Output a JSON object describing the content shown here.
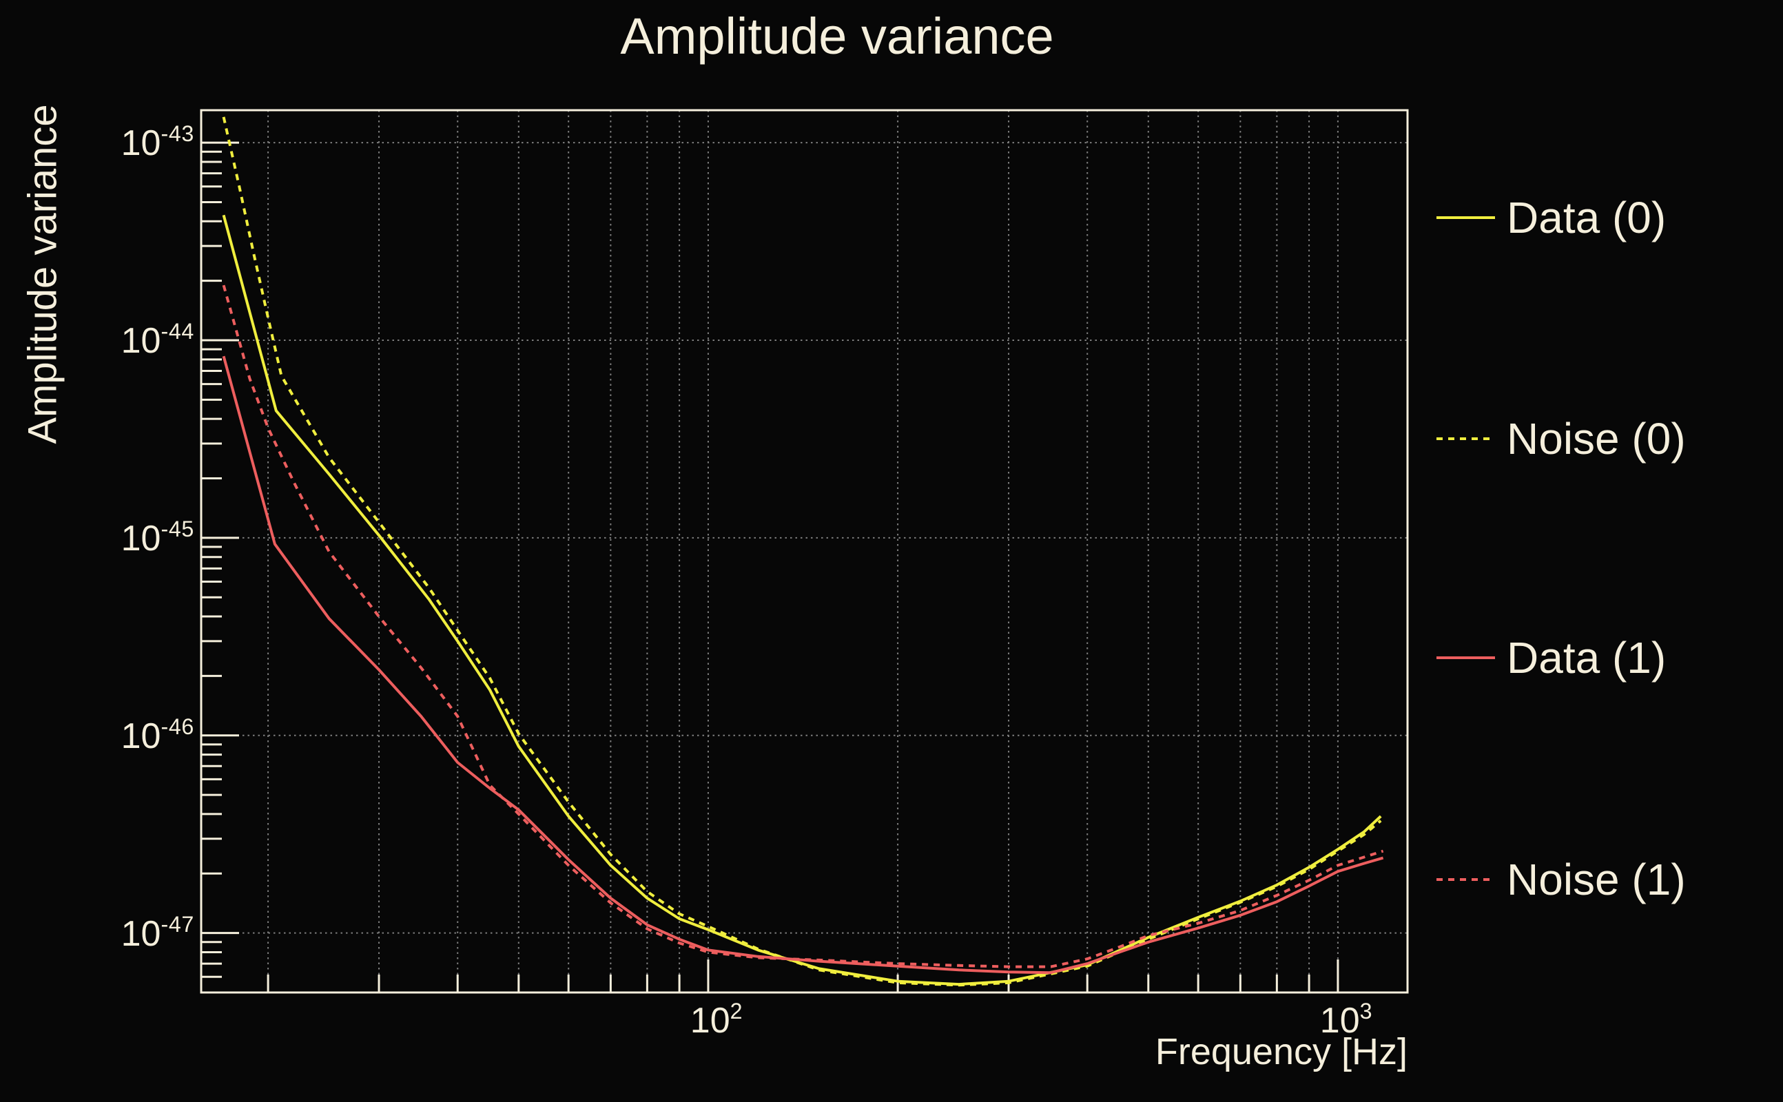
{
  "title": "Amplitude variance",
  "colors": {
    "background": "#070707",
    "foreground": "#f5efdc",
    "grid": "#7d7d7d",
    "yellow": "#f0ee3e",
    "red": "#ed5e5e"
  },
  "legend": [
    {
      "label": "Data (0)",
      "color": "#f0ee3e",
      "style": "solid"
    },
    {
      "label": "Noise (0)",
      "color": "#f0ee3e",
      "style": "dotted"
    },
    {
      "label": "Data (1)",
      "color": "#ed5e5e",
      "style": "solid"
    },
    {
      "label": "Noise (1)",
      "color": "#ed5e5e",
      "style": "dotted"
    }
  ],
  "chart_data": {
    "type": "line",
    "title": "Amplitude variance",
    "xlabel": "Frequency [Hz]",
    "ylabel": "Amplitude variance",
    "x_scale": "log",
    "y_scale": "log",
    "xlim": [
      15.66,
      1290
    ],
    "ylim": [
      5e-48,
      1.46e-43
    ],
    "grid": true,
    "x_grid_max": 1000,
    "legend_position": "right",
    "x_tick_labels": [
      {
        "value": 100,
        "base": "10",
        "exp": "2"
      },
      {
        "value": 1000,
        "base": "10",
        "exp": "3"
      }
    ],
    "y_tick_labels": [
      {
        "value": 1e-43,
        "base": "10",
        "exp": "-43"
      },
      {
        "value": 1e-44,
        "base": "10",
        "exp": "-44"
      },
      {
        "value": 1e-45,
        "base": "10",
        "exp": "-45"
      },
      {
        "value": 1e-46,
        "base": "10",
        "exp": "-46"
      },
      {
        "value": 1e-47,
        "base": "10",
        "exp": "-47"
      }
    ],
    "series": [
      {
        "name": "Data (0)",
        "color": "#f0ee3e",
        "style": "solid",
        "points": [
          [
            17,
            4.3e-44
          ],
          [
            20.6,
            4.4e-45
          ],
          [
            25,
            2.1e-45
          ],
          [
            30,
            1.03e-45
          ],
          [
            36,
            4.9e-46
          ],
          [
            40,
            3e-46
          ],
          [
            45,
            1.7e-46
          ],
          [
            50,
            8.8e-47
          ],
          [
            60,
            3.9e-47
          ],
          [
            70,
            2.2e-47
          ],
          [
            80,
            1.5e-47
          ],
          [
            90,
            1.18e-47
          ],
          [
            100,
            1.04e-47
          ],
          [
            120,
            8.2e-48
          ],
          [
            150,
            6.6e-48
          ],
          [
            200,
            5.7e-48
          ],
          [
            250,
            5.5e-48
          ],
          [
            300,
            5.7e-48
          ],
          [
            400,
            6.9e-48
          ],
          [
            500,
            9.5e-48
          ],
          [
            600,
            1.2e-47
          ],
          [
            700,
            1.45e-47
          ],
          [
            800,
            1.75e-47
          ],
          [
            900,
            2.15e-47
          ],
          [
            1000,
            2.65e-47
          ],
          [
            1100,
            3.25e-47
          ],
          [
            1170,
            3.9e-47
          ]
        ]
      },
      {
        "name": "Noise (0)",
        "color": "#f0ee3e",
        "style": "dotted",
        "points": [
          [
            17,
            1.35e-43
          ],
          [
            18,
            6e-44
          ],
          [
            19,
            2.7e-44
          ],
          [
            20,
            1.3e-44
          ],
          [
            21,
            6.6e-45
          ],
          [
            25,
            2.55e-45
          ],
          [
            30,
            1.2e-45
          ],
          [
            36,
            5.6e-46
          ],
          [
            40,
            3.4e-46
          ],
          [
            45,
            1.95e-46
          ],
          [
            50,
            1.02e-46
          ],
          [
            60,
            4.6e-47
          ],
          [
            70,
            2.5e-47
          ],
          [
            80,
            1.62e-47
          ],
          [
            90,
            1.25e-47
          ],
          [
            100,
            1.08e-47
          ],
          [
            120,
            8.3e-48
          ],
          [
            150,
            6.5e-48
          ],
          [
            200,
            5.6e-48
          ],
          [
            250,
            5.45e-48
          ],
          [
            300,
            5.6e-48
          ],
          [
            400,
            6.8e-48
          ],
          [
            500,
            9.3e-48
          ],
          [
            600,
            1.18e-47
          ],
          [
            700,
            1.43e-47
          ],
          [
            800,
            1.72e-47
          ],
          [
            900,
            2.1e-47
          ],
          [
            1000,
            2.6e-47
          ],
          [
            1100,
            3.15e-47
          ],
          [
            1170,
            3.7e-47
          ]
        ]
      },
      {
        "name": "Data (1)",
        "color": "#ed5e5e",
        "style": "solid",
        "points": [
          [
            17,
            8.3e-45
          ],
          [
            20.5,
            9.3e-46
          ],
          [
            25,
            3.9e-46
          ],
          [
            30,
            2.15e-46
          ],
          [
            35,
            1.25e-46
          ],
          [
            40,
            7.3e-47
          ],
          [
            45,
            5.4e-47
          ],
          [
            50,
            4.2e-47
          ],
          [
            60,
            2.35e-47
          ],
          [
            70,
            1.5e-47
          ],
          [
            80,
            1.1e-47
          ],
          [
            90,
            9.3e-48
          ],
          [
            100,
            8.2e-48
          ],
          [
            120,
            7.6e-48
          ],
          [
            150,
            7.2e-48
          ],
          [
            200,
            6.8e-48
          ],
          [
            250,
            6.5e-48
          ],
          [
            300,
            6.35e-48
          ],
          [
            350,
            6.3e-48
          ],
          [
            400,
            7e-48
          ],
          [
            450,
            8e-48
          ],
          [
            500,
            9e-48
          ],
          [
            600,
            1.06e-47
          ],
          [
            700,
            1.23e-47
          ],
          [
            800,
            1.44e-47
          ],
          [
            900,
            1.73e-47
          ],
          [
            1000,
            2.05e-47
          ],
          [
            1100,
            2.25e-47
          ],
          [
            1180,
            2.4e-47
          ]
        ]
      },
      {
        "name": "Noise (1)",
        "color": "#ed5e5e",
        "style": "dotted",
        "points": [
          [
            17,
            1.9e-44
          ],
          [
            18.7,
            6.4e-45
          ],
          [
            20,
            3.6e-45
          ],
          [
            22,
            1.9e-45
          ],
          [
            25,
            8.5e-46
          ],
          [
            30,
            4e-46
          ],
          [
            35,
            2.2e-46
          ],
          [
            40,
            1.25e-46
          ],
          [
            45,
            5.6e-47
          ],
          [
            50,
            4e-47
          ],
          [
            60,
            2.2e-47
          ],
          [
            70,
            1.42e-47
          ],
          [
            80,
            1.05e-47
          ],
          [
            90,
            8.9e-48
          ],
          [
            100,
            8e-48
          ],
          [
            120,
            7.5e-48
          ],
          [
            150,
            7.3e-48
          ],
          [
            200,
            7e-48
          ],
          [
            250,
            6.85e-48
          ],
          [
            300,
            6.75e-48
          ],
          [
            350,
            6.75e-48
          ],
          [
            400,
            7.4e-48
          ],
          [
            450,
            8.5e-48
          ],
          [
            500,
            9.7e-48
          ],
          [
            600,
            1.12e-47
          ],
          [
            700,
            1.3e-47
          ],
          [
            800,
            1.55e-47
          ],
          [
            900,
            1.85e-47
          ],
          [
            1000,
            2.2e-47
          ],
          [
            1100,
            2.42e-47
          ],
          [
            1180,
            2.6e-47
          ]
        ]
      }
    ]
  }
}
